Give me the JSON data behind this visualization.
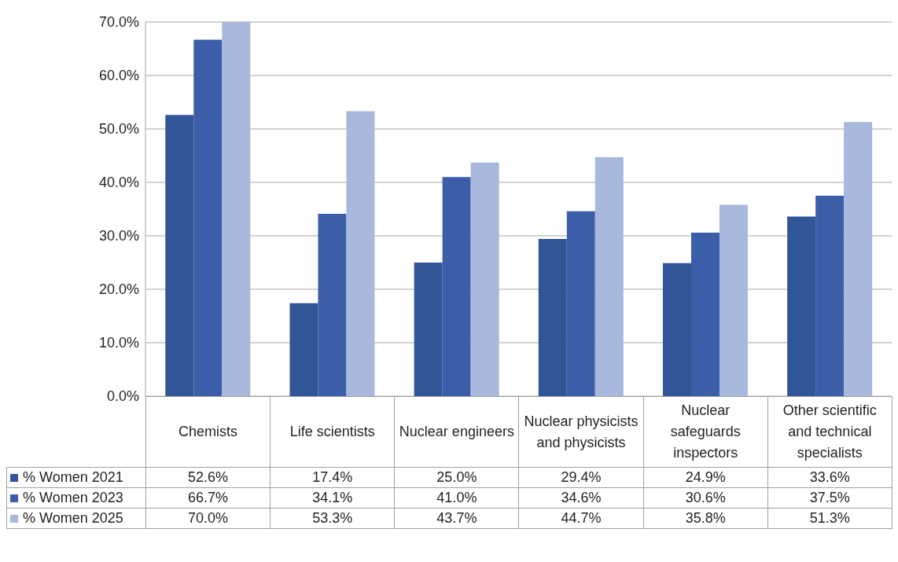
{
  "chart_data": {
    "type": "bar",
    "categories": [
      "Chemists",
      "Life scientists",
      "Nuclear engineers",
      "Nuclear physicists and physicists",
      "Nuclear safeguards inspectors",
      "Other scientific and technical specialists"
    ],
    "series": [
      {
        "name": "% Women 2021",
        "color": "#325597",
        "values": [
          52.6,
          17.4,
          25.0,
          29.4,
          24.9,
          33.6
        ],
        "value_labels": [
          "52.6%",
          "17.4%",
          "25.0%",
          "29.4%",
          "24.9%",
          "33.6%"
        ]
      },
      {
        "name": "% Women 2023",
        "color": "#3c5ea8",
        "values": [
          66.7,
          34.1,
          41.0,
          34.6,
          30.6,
          37.5
        ],
        "value_labels": [
          "66.7%",
          "34.1%",
          "41.0%",
          "34.6%",
          "30.6%",
          "37.5%"
        ]
      },
      {
        "name": "% Women 2025",
        "color": "#a8b7dc",
        "values": [
          70.0,
          53.3,
          43.7,
          44.7,
          35.8,
          51.3
        ],
        "value_labels": [
          "70.0%",
          "53.3%",
          "43.7%",
          "44.7%",
          "35.8%",
          "51.3%"
        ]
      }
    ],
    "ylim": [
      0,
      70
    ],
    "yticks": [
      {
        "value": 0,
        "label": "0.0%"
      },
      {
        "value": 10,
        "label": "10.0%"
      },
      {
        "value": 20,
        "label": "20.0%"
      },
      {
        "value": 30,
        "label": "30.0%"
      },
      {
        "value": 40,
        "label": "40.0%"
      },
      {
        "value": 50,
        "label": "50.0%"
      },
      {
        "value": 60,
        "label": "60.0%"
      },
      {
        "value": 70,
        "label": "70.0%"
      }
    ],
    "grid": "y",
    "legend": "bottom"
  }
}
